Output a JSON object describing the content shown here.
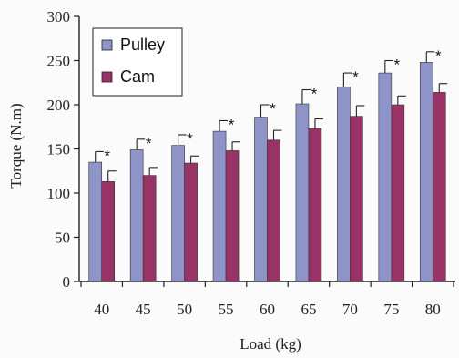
{
  "chart_data": {
    "type": "bar",
    "categories": [
      "40",
      "45",
      "50",
      "55",
      "60",
      "65",
      "70",
      "75",
      "80"
    ],
    "series": [
      {
        "name": "Pulley",
        "color": "#8e93c8",
        "values": [
          135,
          149,
          154,
          170,
          186,
          201,
          220,
          236,
          248
        ],
        "errors": [
          12,
          12,
          12,
          12,
          14,
          16,
          16,
          14,
          12
        ]
      },
      {
        "name": "Cam",
        "color": "#993366",
        "values": [
          113,
          120,
          134,
          148,
          160,
          173,
          187,
          200,
          214
        ],
        "errors": [
          12,
          9,
          8,
          10,
          11,
          11,
          12,
          10,
          10
        ]
      }
    ],
    "significance_marker": "*",
    "significance_on": [
      "40",
      "45",
      "50",
      "55",
      "60",
      "65",
      "70",
      "75",
      "80"
    ],
    "xlabel": "Load (kg)",
    "ylabel": "Torque (N.m)",
    "ylim": [
      0,
      300
    ],
    "yticks": [
      "0",
      "50",
      "100",
      "150",
      "200",
      "250",
      "300"
    ],
    "legend_position": "top-left",
    "grid": false
  }
}
